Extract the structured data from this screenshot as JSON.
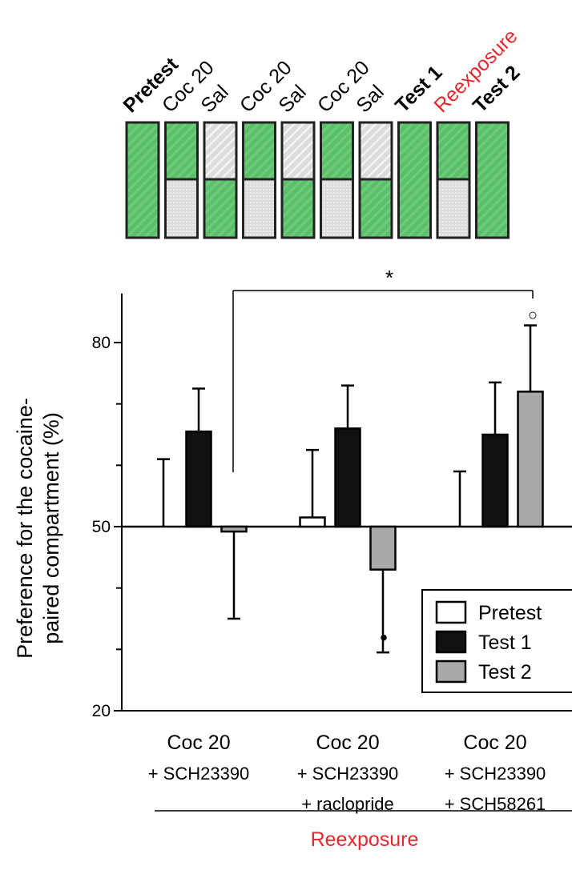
{
  "schedule": {
    "sessions": [
      {
        "label": "Pretest",
        "bold": true,
        "color": "#000000",
        "type": "full"
      },
      {
        "label": "Coc 20",
        "bold": false,
        "color": "#000000",
        "type": "coc"
      },
      {
        "label": "Sal",
        "bold": false,
        "color": "#000000",
        "type": "sal"
      },
      {
        "label": "Coc 20",
        "bold": false,
        "color": "#000000",
        "type": "coc"
      },
      {
        "label": "Sal",
        "bold": false,
        "color": "#000000",
        "type": "sal"
      },
      {
        "label": "Coc 20",
        "bold": false,
        "color": "#000000",
        "type": "coc"
      },
      {
        "label": "Sal",
        "bold": false,
        "color": "#000000",
        "type": "sal"
      },
      {
        "label": "Test 1",
        "bold": true,
        "color": "#000000",
        "type": "full"
      },
      {
        "label": "Reexposure",
        "bold": false,
        "color": "#e8262b",
        "type": "coc"
      },
      {
        "label": "Test 2",
        "bold": true,
        "color": "#000000",
        "type": "full"
      }
    ],
    "colors": {
      "green": "#5cbf6b",
      "gray": "#dcdcdc"
    }
  },
  "chart_data": {
    "type": "bar",
    "ylabel": "Preference for the cocaine-\npaired compartment (%)",
    "ylim": [
      20,
      88
    ],
    "yticks": [
      20,
      50,
      80
    ],
    "baseline": 50,
    "categories": [
      [
        "Coc 20",
        "+ SCH23390"
      ],
      [
        "Coc 20",
        "+ SCH23390",
        "+ raclopride"
      ],
      [
        "Coc 20",
        "+ SCH23390",
        "+ SCH58261"
      ]
    ],
    "series": [
      {
        "name": "Pretest",
        "color": "#ffffff",
        "values": [
          50,
          51.5,
          50
        ],
        "errors": [
          11,
          12.5,
          9
        ]
      },
      {
        "name": "Test 1",
        "color": "#111111",
        "values": [
          65.5,
          66,
          65
        ],
        "errors": [
          65.5,
          66,
          65
        ]
      },
      {
        "name": "Test 2",
        "color": "#a9a9a9",
        "values": [
          49.2,
          43,
          72
        ],
        "errors": [
          35,
          29.5,
          82.8
        ]
      }
    ],
    "error_tops": {
      "Pretest": [
        61,
        62.5,
        59
      ],
      "Test 1": [
        72.5,
        73,
        73.5
      ],
      "Test 2": [
        35,
        29.5,
        82.8
      ]
    },
    "legend": {
      "position": "bottom-right",
      "entries": [
        "Pretest",
        "Test 1",
        "Test 2"
      ]
    },
    "annotations": {
      "comparison_star": "*",
      "open_circle": "○",
      "filled_dot": "•"
    },
    "group_label": "Reexposure",
    "group_label_color": "#e8262b"
  }
}
